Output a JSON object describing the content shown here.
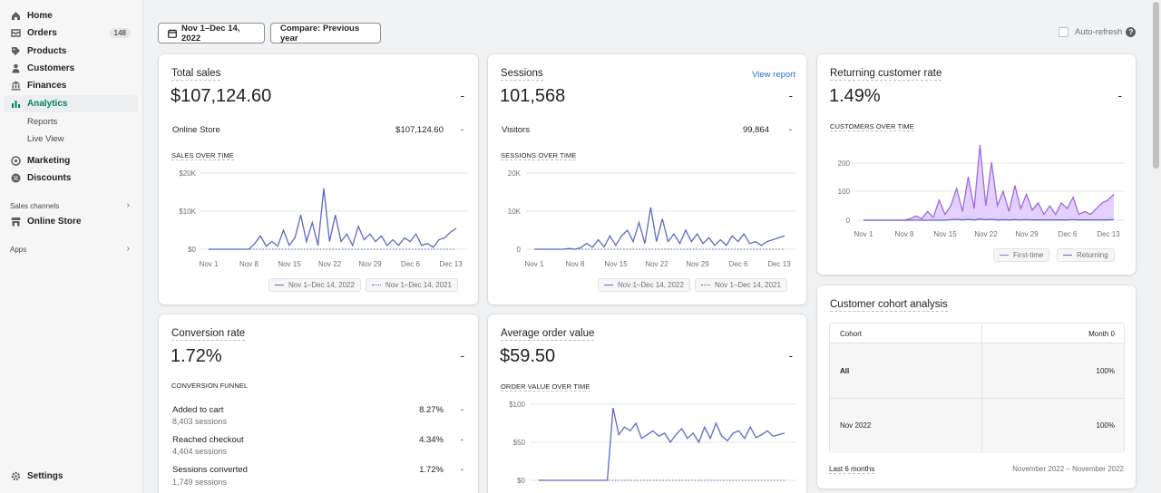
{
  "sidebar": {
    "items": [
      {
        "label": "Home",
        "icon": "home-icon"
      },
      {
        "label": "Orders",
        "icon": "orders-icon",
        "badge": "148"
      },
      {
        "label": "Products",
        "icon": "tag-icon"
      },
      {
        "label": "Customers",
        "icon": "person-icon"
      },
      {
        "label": "Finances",
        "icon": "bank-icon"
      },
      {
        "label": "Analytics",
        "icon": "bar-chart-icon",
        "active": true
      }
    ],
    "analytics_sub": [
      "Reports",
      "Live View"
    ],
    "items2": [
      {
        "label": "Marketing",
        "icon": "target-icon"
      },
      {
        "label": "Discounts",
        "icon": "discount-icon"
      }
    ],
    "sales_channels_label": "Sales channels",
    "online_store": "Online Store",
    "apps_label": "Apps",
    "settings": "Settings"
  },
  "toolbar": {
    "date_range": "Nov 1–Dec 14, 2022",
    "compare": "Compare: Previous year",
    "auto_refresh": "Auto-refresh"
  },
  "total_sales": {
    "title": "Total sales",
    "value": "$107,124.60",
    "dash": "-",
    "row_label": "Online Store",
    "row_value": "$107,124.60",
    "row_dash": "-",
    "chart_heading": "SALES OVER TIME",
    "y_ticks": [
      "$20K",
      "$10K",
      "$0"
    ],
    "x_ticks": [
      "Nov 1",
      "Nov 8",
      "Nov 15",
      "Nov 22",
      "Nov 29",
      "Dec 6",
      "Dec 13"
    ],
    "legend": [
      "Nov 1–Dec 14, 2022",
      "Nov 1–Dec 14, 2021"
    ]
  },
  "sessions": {
    "title": "Sessions",
    "view_report": "View report",
    "value": "101,568",
    "dash": "-",
    "row_label": "Visitors",
    "row_value": "99,864",
    "row_dash": "-",
    "chart_heading": "SESSIONS OVER TIME",
    "y_ticks": [
      "20K",
      "10K",
      "0"
    ],
    "x_ticks": [
      "Nov 1",
      "Nov 8",
      "Nov 15",
      "Nov 22",
      "Nov 29",
      "Dec 6",
      "Dec 13"
    ],
    "legend": [
      "Nov 1–Dec 14, 2022",
      "Nov 1–Dec 14, 2021"
    ]
  },
  "returning": {
    "title": "Returning customer rate",
    "value": "1.49%",
    "dash": "-",
    "chart_heading": "CUSTOMERS OVER TIME",
    "y_ticks": [
      "200",
      "100",
      "0"
    ],
    "x_ticks": [
      "Nov 1",
      "Nov 8",
      "Nov 15",
      "Nov 22",
      "Nov 29",
      "Dec 6",
      "Dec 13"
    ],
    "legend": [
      "First-time",
      "Returning"
    ]
  },
  "conversion": {
    "title": "Conversion rate",
    "value": "1.72%",
    "dash": "-",
    "chart_heading": "CONVERSION FUNNEL",
    "steps": [
      {
        "label": "Added to cart",
        "sessions": "8,403 sessions",
        "pct": "8.27%",
        "dash": "-"
      },
      {
        "label": "Reached checkout",
        "sessions": "4,404 sessions",
        "pct": "4.34%",
        "dash": "-"
      },
      {
        "label": "Sessions converted",
        "sessions": "1,749 sessions",
        "pct": "1.72%",
        "dash": "-"
      }
    ]
  },
  "aov": {
    "title": "Average order value",
    "value": "$59.50",
    "dash": "-",
    "chart_heading": "ORDER VALUE OVER TIME",
    "y_ticks": [
      "$100",
      "$50",
      "$0"
    ]
  },
  "cohort": {
    "title": "Customer cohort analysis",
    "col1": "Cohort",
    "col2": "Month 0",
    "rows": [
      {
        "cohort": "All",
        "value": "100%"
      },
      {
        "cohort": "Nov 2022",
        "value": "100%"
      }
    ],
    "footer_left": "Last 6 months",
    "footer_right": "November 2022 – November 2022"
  },
  "colors": {
    "accent": "#5c6ac4",
    "purple": "#9c6ade",
    "active": "#008060",
    "link": "#2c6ecb"
  },
  "chart_data": [
    {
      "type": "line",
      "title": "SALES OVER TIME",
      "x_ticks": [
        "Nov 1",
        "Nov 8",
        "Nov 15",
        "Nov 22",
        "Nov 29",
        "Dec 6",
        "Dec 13"
      ],
      "ylim": [
        0,
        20000
      ],
      "series": [
        {
          "name": "Nov 1–Dec 14, 2022",
          "values": [
            0,
            0,
            0,
            0,
            0,
            0,
            0,
            0,
            1500,
            3500,
            800,
            2000,
            800,
            5000,
            1000,
            3000,
            9000,
            2000,
            7000,
            1000,
            16000,
            2000,
            9000,
            2000,
            4000,
            1000,
            6000,
            2500,
            4000,
            2000,
            3500,
            1000,
            2500,
            1000,
            3000,
            2000,
            4000,
            1000,
            1500,
            500,
            2500,
            3000,
            4500,
            5500
          ]
        },
        {
          "name": "Nov 1–Dec 14, 2021",
          "values": [
            0,
            0,
            0,
            0,
            0,
            0,
            0,
            0,
            0,
            0,
            0,
            0,
            0,
            0,
            0,
            0,
            0,
            0,
            0,
            0,
            0,
            0,
            0,
            0,
            0,
            0,
            0,
            0,
            0,
            0,
            0,
            0,
            0,
            0,
            0,
            0,
            0,
            0,
            0,
            0,
            0,
            0,
            0,
            0
          ]
        }
      ]
    },
    {
      "type": "line",
      "title": "SESSIONS OVER TIME",
      "x_ticks": [
        "Nov 1",
        "Nov 8",
        "Nov 15",
        "Nov 22",
        "Nov 29",
        "Dec 6",
        "Dec 13"
      ],
      "ylim": [
        0,
        20000
      ],
      "series": [
        {
          "name": "Nov 1–Dec 14, 2022",
          "values": [
            0,
            0,
            0,
            0,
            0,
            0,
            200,
            0,
            400,
            1500,
            500,
            2500,
            600,
            3500,
            1000,
            3500,
            5000,
            2000,
            7000,
            1500,
            11000,
            2000,
            8000,
            2000,
            4000,
            1500,
            5000,
            2000,
            4000,
            1500,
            3000,
            1000,
            2500,
            1000,
            3500,
            2000,
            4000,
            1500,
            2000,
            1000,
            2000,
            2500,
            3000,
            3500
          ]
        },
        {
          "name": "Nov 1–Dec 14, 2021",
          "values": [
            0,
            0,
            0,
            0,
            0,
            0,
            0,
            0,
            0,
            0,
            0,
            0,
            0,
            0,
            0,
            0,
            0,
            0,
            0,
            0,
            0,
            0,
            0,
            0,
            0,
            0,
            0,
            0,
            0,
            0,
            0,
            0,
            0,
            0,
            0,
            0,
            0,
            0,
            0,
            0,
            0,
            0,
            0,
            0
          ]
        }
      ]
    },
    {
      "type": "area",
      "title": "CUSTOMERS OVER TIME",
      "x_ticks": [
        "Nov 1",
        "Nov 8",
        "Nov 15",
        "Nov 22",
        "Nov 29",
        "Dec 6",
        "Dec 13"
      ],
      "ylim": [
        0,
        260
      ],
      "series": [
        {
          "name": "First-time",
          "values": [
            0,
            0,
            0,
            0,
            0,
            0,
            0,
            0,
            5,
            15,
            5,
            30,
            10,
            70,
            20,
            50,
            110,
            30,
            150,
            40,
            260,
            50,
            200,
            50,
            100,
            30,
            120,
            40,
            90,
            35,
            60,
            20,
            50,
            20,
            60,
            40,
            80,
            20,
            30,
            20,
            40,
            60,
            70,
            90
          ]
        },
        {
          "name": "Returning",
          "values": [
            0,
            0,
            0,
            0,
            0,
            0,
            0,
            0,
            0,
            0,
            0,
            0,
            0,
            0,
            0,
            2,
            3,
            1,
            3,
            1,
            4,
            2,
            3,
            1,
            2,
            1,
            2,
            1,
            2,
            1,
            1,
            1,
            1,
            1,
            1,
            1,
            2,
            1,
            1,
            1,
            1,
            1,
            1,
            2
          ]
        }
      ]
    },
    {
      "type": "line",
      "title": "ORDER VALUE OVER TIME",
      "ylim": [
        0,
        100
      ],
      "series": [
        {
          "name": "Nov 1–Dec 14, 2022",
          "values": [
            0,
            0,
            0,
            0,
            0,
            0,
            0,
            0,
            0,
            0,
            0,
            0,
            0,
            95,
            60,
            70,
            65,
            75,
            55,
            60,
            65,
            58,
            62,
            50,
            60,
            68,
            55,
            62,
            50,
            70,
            55,
            75,
            58,
            52,
            62,
            65,
            55,
            70,
            56,
            60,
            65,
            58,
            60,
            62
          ]
        },
        {
          "name": "Nov 1–Dec 14, 2021",
          "values": [
            0,
            0,
            0,
            0,
            0,
            0,
            0,
            0,
            0,
            0,
            0,
            0,
            0,
            0,
            0,
            0,
            0,
            0,
            0,
            0,
            0,
            0,
            0,
            0,
            0,
            0,
            0,
            0,
            0,
            0,
            0,
            0,
            0,
            0,
            0,
            0,
            0,
            0,
            0,
            0,
            0,
            0,
            0,
            0
          ]
        }
      ]
    }
  ]
}
